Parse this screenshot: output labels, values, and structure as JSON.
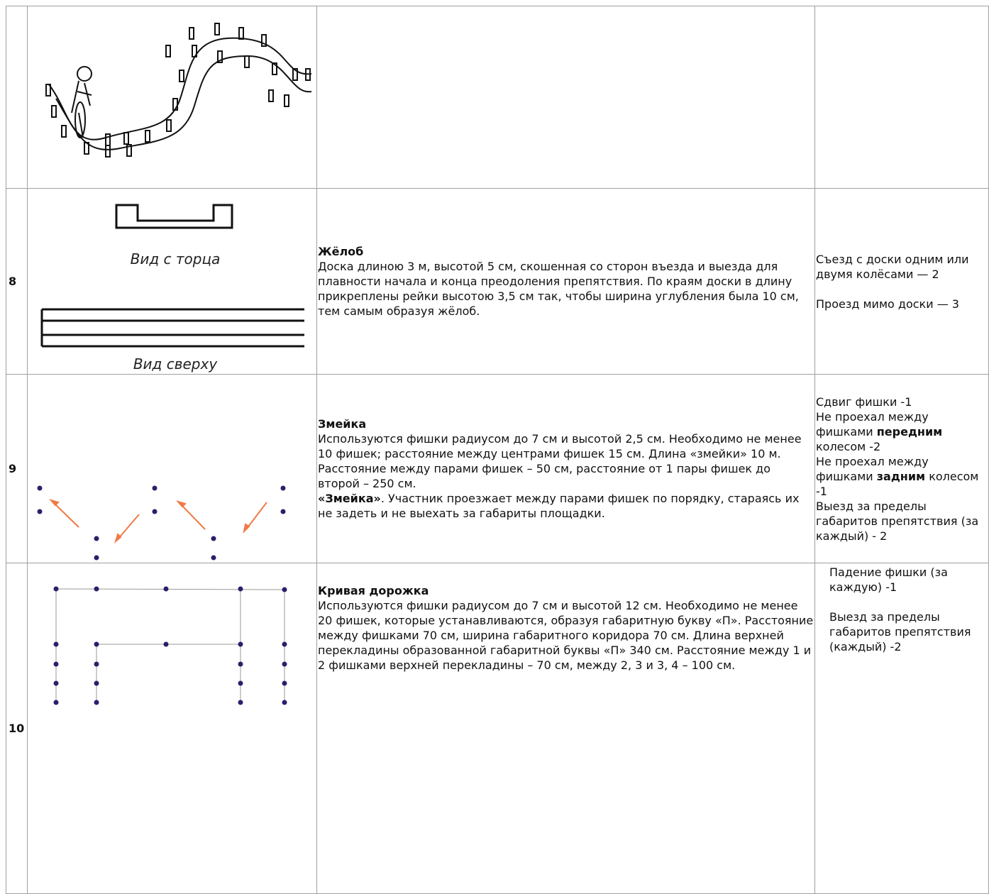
{
  "rows": [
    {
      "number": "8",
      "title": "Жёлоб",
      "image_labels": [
        "Вид с торца",
        "Вид сверху"
      ],
      "description": [
        [
          "Доска длиною 3 м, высотой 5 см, скошенная со сторон въезда и выезда для плавности начала и конца преодоления препятствия. По краям доски в длину прикреплены рейки высотою 3,5 см так, чтобы ширина углубления была 10 см, тем самым образуя жёлоб."
        ]
      ],
      "penalties": [
        [
          "Съезд с доски одним или двумя колёсами — 2"
        ],
        [
          "Проезд мимо доски — 3"
        ]
      ]
    },
    {
      "number": "9",
      "title": "Змейка",
      "description": [
        [
          "Используются фишки радиусом до 7 см и высотой 2,5 см. Необходимо не менее 10 фишек; расстояние между центрами фишек 15 см. Длина «змейки» 10 м. Расстояние между парами фишек – 50 см, расстояние от 1 пары фишек до второй – 250 см."
        ],
        [
          {
            "text": "«Змейка»",
            "bold": true
          },
          ". Участник проезжает между парами фишек по порядку, стараясь их не задеть и не выехать за габариты площадки."
        ]
      ],
      "penalties": [
        [
          "Сдвиг фишки -1"
        ],
        [
          "Не проехал между фишками ",
          {
            "text": "передним",
            "bold": true
          },
          " колесом -2"
        ],
        [
          "Не проехал между фишками ",
          {
            "text": "задним",
            "bold": true
          },
          " колесом -1"
        ],
        [
          "Выезд за пределы габаритов препятствия (за каждый) - 2"
        ]
      ]
    },
    {
      "number": "10",
      "title": "Кривая дорожка",
      "description": [
        [
          "Используются фишки радиусом до 7 см и высотой 12 см. Необходимо не менее 20 фишек, которые устанавливаются, образуя габаритную букву «П». Расстояние между фишками 70 см, ширина габаритного коридора 70 см. Длина верхней перекладины образованной габаритной буквы «П» 340 см. Расстояние между 1 и 2 фишками верхней перекладины – 70 см, между 2, 3 и 3, 4 – 100 см."
        ]
      ],
      "penalties": [
        [
          "Падение фишки (за каждую) -1"
        ],
        [
          "Выезд за пределы габаритов препятствия (каждый) -2"
        ]
      ]
    }
  ]
}
